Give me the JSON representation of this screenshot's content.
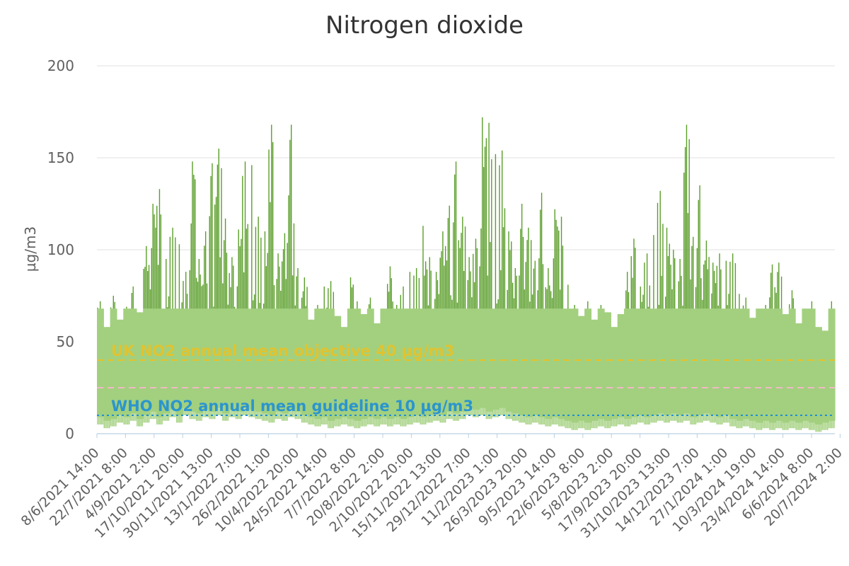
{
  "chart_data": {
    "type": "line",
    "title": "Nitrogen dioxide",
    "ylabel": "µg/m3",
    "xlabel": "",
    "ylim": [
      0,
      200
    ],
    "y_ticks": [
      0,
      50,
      100,
      150,
      200
    ],
    "grid": true,
    "x_range": [
      "2021-06-08T14:00",
      "2024-08-10T00:00"
    ],
    "x_tick_labels": [
      "8/6/2021 14:00",
      "22/7/2021 8:00",
      "4/9/2021 2:00",
      "17/10/2021 20:00",
      "30/11/2021 13:00",
      "13/1/2022 7:00",
      "26/2/2022 1:00",
      "10/4/2022 20:00",
      "24/5/2022 14:00",
      "7/7/2022 8:00",
      "20/8/2022 2:00",
      "2/10/2022 20:00",
      "15/11/2022 13:00",
      "29/12/2022 7:00",
      "11/2/2023 1:00",
      "26/3/2023 20:00",
      "9/5/2023 14:00",
      "22/6/2023 8:00",
      "5/8/2023 2:00",
      "17/9/2023 20:00",
      "31/10/2023 13:00",
      "14/12/2023 7:00",
      "27/1/2024 1:00",
      "10/3/2024 19:00",
      "23/4/2024 14:00",
      "6/6/2024 8:00",
      "20/7/2024 2:00"
    ],
    "reference_lines": [
      {
        "label": "UK NO2 annual mean objective 40 µg/m3",
        "value": 40,
        "color": "#e6c229",
        "style": "dashed"
      },
      {
        "label": "",
        "value": 25,
        "color": "#f2b8c6",
        "style": "dashed"
      },
      {
        "label": "WHO NO2 annual mean guideline 10 µg/m3",
        "value": 10,
        "color": "#1f8fd6",
        "style": "dotted"
      }
    ],
    "series_color_low": "#a3d07f",
    "series_color_high": "#5a9e2a",
    "high_threshold": 68,
    "series": [
      {
        "sampling": "weekly envelope",
        "values": [
          [
            9,
            72
          ],
          [
            7,
            58
          ],
          [
            8,
            75
          ],
          [
            10,
            62
          ],
          [
            9,
            69
          ],
          [
            11,
            80
          ],
          [
            8,
            66
          ],
          [
            10,
            102
          ],
          [
            12,
            125
          ],
          [
            9,
            133
          ],
          [
            11,
            95
          ],
          [
            13,
            112
          ],
          [
            10,
            103
          ],
          [
            14,
            88
          ],
          [
            12,
            148
          ],
          [
            11,
            95
          ],
          [
            13,
            110
          ],
          [
            12,
            147
          ],
          [
            14,
            155
          ],
          [
            11,
            117
          ],
          [
            13,
            96
          ],
          [
            12,
            111
          ],
          [
            14,
            148
          ],
          [
            13,
            146
          ],
          [
            12,
            118
          ],
          [
            11,
            110
          ],
          [
            10,
            168
          ],
          [
            12,
            98
          ],
          [
            11,
            109
          ],
          [
            13,
            168
          ],
          [
            12,
            90
          ],
          [
            10,
            85
          ],
          [
            9,
            62
          ],
          [
            8,
            70
          ],
          [
            9,
            80
          ],
          [
            7,
            83
          ],
          [
            8,
            64
          ],
          [
            9,
            58
          ],
          [
            8,
            85
          ],
          [
            7,
            72
          ],
          [
            8,
            65
          ],
          [
            9,
            74
          ],
          [
            8,
            60
          ],
          [
            9,
            68
          ],
          [
            8,
            91
          ],
          [
            9,
            70
          ],
          [
            8,
            80
          ],
          [
            9,
            88
          ],
          [
            10,
            90
          ],
          [
            9,
            113
          ],
          [
            10,
            96
          ],
          [
            11,
            88
          ],
          [
            10,
            110
          ],
          [
            12,
            124
          ],
          [
            11,
            148
          ],
          [
            12,
            118
          ],
          [
            14,
            96
          ],
          [
            13,
            106
          ],
          [
            14,
            172
          ],
          [
            12,
            169
          ],
          [
            13,
            152
          ],
          [
            14,
            154
          ],
          [
            12,
            110
          ],
          [
            11,
            90
          ],
          [
            10,
            125
          ],
          [
            9,
            112
          ],
          [
            10,
            94
          ],
          [
            9,
            131
          ],
          [
            8,
            90
          ],
          [
            9,
            122
          ],
          [
            8,
            118
          ],
          [
            7,
            81
          ],
          [
            6,
            70
          ],
          [
            7,
            64
          ],
          [
            6,
            72
          ],
          [
            7,
            62
          ],
          [
            8,
            70
          ],
          [
            7,
            66
          ],
          [
            8,
            58
          ],
          [
            9,
            65
          ],
          [
            8,
            88
          ],
          [
            9,
            106
          ],
          [
            10,
            80
          ],
          [
            9,
            98
          ],
          [
            10,
            108
          ],
          [
            11,
            132
          ],
          [
            10,
            112
          ],
          [
            11,
            100
          ],
          [
            10,
            95
          ],
          [
            11,
            168
          ],
          [
            9,
            107
          ],
          [
            10,
            135
          ],
          [
            11,
            105
          ],
          [
            10,
            93
          ],
          [
            9,
            98
          ],
          [
            10,
            94
          ],
          [
            8,
            98
          ],
          [
            7,
            76
          ],
          [
            8,
            74
          ],
          [
            7,
            63
          ],
          [
            6,
            68
          ],
          [
            7,
            70
          ],
          [
            6,
            92
          ],
          [
            7,
            93
          ],
          [
            6,
            65
          ],
          [
            7,
            78
          ],
          [
            6,
            60
          ],
          [
            7,
            68
          ],
          [
            6,
            72
          ],
          [
            5,
            58
          ],
          [
            6,
            56
          ],
          [
            7,
            72
          ]
        ]
      }
    ]
  }
}
